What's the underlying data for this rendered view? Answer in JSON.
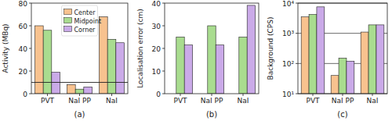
{
  "chart_data": [
    {
      "type": "bar",
      "title": "(a)",
      "ylabel": "Activity (MBq)",
      "categories": [
        "PVT",
        "NaI PP",
        "NaI"
      ],
      "series": [
        {
          "name": "Center",
          "color": "#f8c28f",
          "values": [
            60,
            8,
            68
          ]
        },
        {
          "name": "Midpoint",
          "color": "#a9dc8f",
          "values": [
            56,
            4,
            48
          ]
        },
        {
          "name": "Corner",
          "color": "#caaae8",
          "values": [
            19,
            6,
            45
          ]
        }
      ],
      "ylim": [
        0,
        80
      ],
      "yticks": [
        0,
        20,
        40,
        60,
        80
      ],
      "grid": false,
      "legend": "upper center",
      "threshold": 10
    },
    {
      "type": "bar",
      "title": "(b)",
      "ylabel": "Localisation error (cm)",
      "categories": [
        "PVT",
        "NaI PP",
        "NaI"
      ],
      "series": [
        {
          "name": "Center",
          "color": "#f8c28f",
          "values": [
            null,
            null,
            null
          ]
        },
        {
          "name": "Midpoint",
          "color": "#a9dc8f",
          "values": [
            25,
            30,
            25
          ]
        },
        {
          "name": "Corner",
          "color": "#caaae8",
          "values": [
            21.5,
            21.5,
            39
          ]
        }
      ],
      "ylim": [
        0,
        40
      ],
      "yticks": [
        0,
        10,
        20,
        30,
        40
      ],
      "grid": false
    },
    {
      "type": "bar",
      "title": "(c)",
      "ylabel": "Background (CPS)",
      "categories": [
        "PVT",
        "NaI PP",
        "NaI"
      ],
      "series": [
        {
          "name": "Center",
          "color": "#f8c28f",
          "values": [
            3500,
            40,
            1100
          ]
        },
        {
          "name": "Midpoint",
          "color": "#a9dc8f",
          "values": [
            4200,
            150,
            1900
          ]
        },
        {
          "name": "Corner",
          "color": "#caaae8",
          "values": [
            7500,
            120,
            1900
          ]
        }
      ],
      "ylim": [
        10,
        10000
      ],
      "yticks": [
        {
          "value": 10,
          "label": "10¹"
        },
        {
          "value": 100,
          "label": "10²"
        },
        {
          "value": 1000,
          "label": "10³"
        },
        {
          "value": 10000,
          "label": "10⁴"
        }
      ],
      "log": "y",
      "grid": true
    }
  ]
}
